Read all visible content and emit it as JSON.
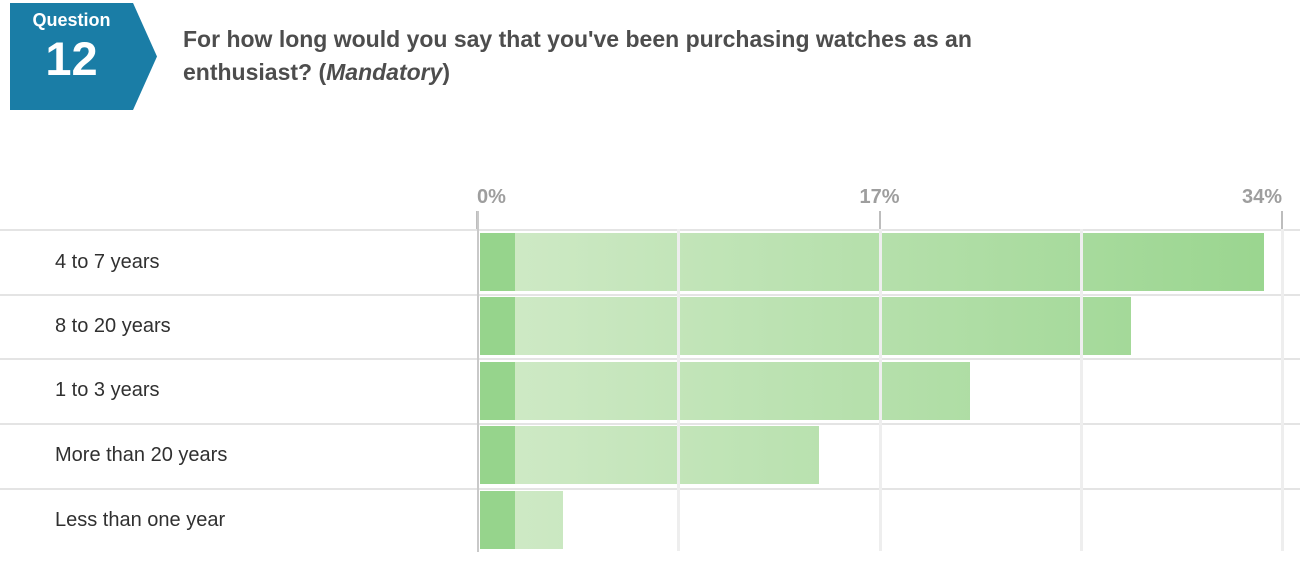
{
  "question_badge": {
    "label": "Question",
    "number": "12",
    "color": "#1a7da6"
  },
  "title": {
    "line1": "For how long would you say that you've been purchasing watches as an",
    "line2_prefix": "enthusiast? (",
    "line2_italic": "Mandatory",
    "line2_suffix": ")"
  },
  "chart_data": {
    "type": "bar",
    "orientation": "horizontal",
    "categories": [
      "4 to 7 years",
      "8 to 20 years",
      "1 to 3 years",
      "More than 20 years",
      "Less than one year"
    ],
    "values": [
      33.1,
      27.5,
      20.7,
      14.3,
      3.5
    ],
    "unit": "%",
    "xlim": [
      0,
      34
    ],
    "x_ticks": [
      {
        "label": "0%",
        "value": 0
      },
      {
        "label": "17%",
        "value": 17
      },
      {
        "label": "34%",
        "value": 34
      }
    ],
    "grid_values": [
      8.5,
      17,
      25.5,
      34
    ],
    "bar_color_light": "#d0eac7",
    "bar_color_dark": "#96d48c",
    "grid": true,
    "legend": "none",
    "title": ""
  }
}
